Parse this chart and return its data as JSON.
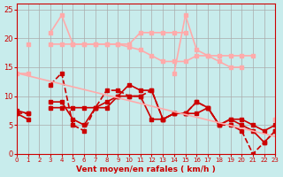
{
  "background_color": "#c8ecec",
  "grid_color": "#aaaaaa",
  "xlabel": "Vent moyen/en rafales ( km/h )",
  "xlabel_color": "#cc0000",
  "tick_color": "#cc0000",
  "xlim": [
    0,
    23
  ],
  "ylim": [
    0,
    26
  ],
  "yticks": [
    0,
    5,
    10,
    15,
    20,
    25
  ],
  "xticks": [
    0,
    1,
    2,
    3,
    4,
    5,
    6,
    7,
    8,
    9,
    10,
    11,
    12,
    13,
    14,
    15,
    16,
    17,
    18,
    19,
    20,
    21,
    22,
    23
  ],
  "lines": [
    {
      "x": [
        0,
        1,
        2,
        3,
        4,
        5,
        6,
        7,
        8,
        9,
        10,
        11,
        12,
        13,
        14,
        15,
        16,
        17,
        18,
        19,
        20,
        21,
        22,
        23
      ],
      "y": [
        7,
        6,
        null,
        9,
        9,
        6,
        5,
        8,
        8,
        10,
        12,
        11,
        11,
        6,
        7,
        7,
        9,
        8,
        5,
        6,
        5,
        4,
        2,
        4
      ],
      "color": "#cc0000",
      "linewidth": 1.2,
      "marker": "s",
      "markersize": 2.5,
      "linestyle": "-"
    },
    {
      "x": [
        0,
        1,
        2,
        3,
        4,
        5,
        6,
        7,
        8,
        9,
        10,
        11,
        12,
        13,
        14,
        15,
        16,
        17,
        18,
        19,
        20,
        21,
        22,
        23
      ],
      "y": [
        7,
        7,
        null,
        12,
        14,
        5,
        4,
        8,
        11,
        11,
        10,
        10,
        11,
        6,
        7,
        7,
        9,
        8,
        5,
        5,
        4,
        0,
        2,
        4
      ],
      "color": "#cc0000",
      "linewidth": 1.2,
      "marker": "s",
      "markersize": 2.5,
      "linestyle": "--"
    },
    {
      "x": [
        0,
        1,
        2,
        3,
        4,
        5,
        6,
        7,
        8,
        9,
        10,
        11,
        12,
        13,
        14,
        15,
        16,
        17,
        18,
        19,
        20,
        21,
        22,
        23
      ],
      "y": [
        7.5,
        7,
        null,
        8,
        8,
        8,
        8,
        8,
        9,
        10,
        10,
        10,
        6,
        6,
        7,
        7,
        7,
        8,
        5,
        6,
        6,
        5,
        4,
        5
      ],
      "color": "#cc0000",
      "linewidth": 1.2,
      "marker": "s",
      "markersize": 2.5,
      "linestyle": "-"
    },
    {
      "x": [
        0,
        1,
        2,
        3,
        4,
        5,
        6,
        7,
        8,
        9,
        10,
        11,
        12,
        13,
        14,
        15,
        16,
        17,
        18,
        19,
        20,
        21,
        22,
        23
      ],
      "y": [
        14,
        14,
        null,
        19,
        19,
        19,
        19,
        19,
        19,
        19,
        18.5,
        18,
        17,
        16,
        16,
        16,
        17,
        17,
        16,
        15,
        15,
        null,
        null,
        6
      ],
      "color": "#ffaaaa",
      "linewidth": 1.2,
      "marker": "s",
      "markersize": 2.5,
      "linestyle": "-"
    },
    {
      "x": [
        0,
        1,
        2,
        3,
        4,
        5,
        6,
        7,
        8,
        9,
        10,
        11,
        12,
        13,
        14,
        15,
        16,
        17,
        18,
        19,
        20,
        21,
        22,
        23
      ],
      "y": [
        null,
        null,
        null,
        21,
        24,
        19,
        19,
        19,
        19,
        19,
        19,
        21,
        21,
        21,
        21,
        21,
        null,
        null,
        null,
        null,
        null,
        null,
        null,
        null
      ],
      "color": "#ffaaaa",
      "linewidth": 1.2,
      "marker": "s",
      "markersize": 2.5,
      "linestyle": "-"
    },
    {
      "x": [
        0,
        1,
        2,
        3,
        4,
        5,
        6,
        7,
        8,
        9,
        10,
        11,
        12,
        13,
        14,
        15,
        16,
        17,
        18,
        19,
        20,
        21,
        22,
        23
      ],
      "y": [
        null,
        null,
        null,
        null,
        null,
        null,
        null,
        null,
        null,
        null,
        null,
        null,
        null,
        null,
        14,
        24,
        18,
        17,
        17,
        17,
        17,
        17,
        null,
        6
      ],
      "color": "#ffaaaa",
      "linewidth": 1.2,
      "marker": "s",
      "markersize": 2.5,
      "linestyle": "-"
    },
    {
      "x": [
        0,
        1,
        2,
        3,
        4,
        5,
        6,
        7,
        8,
        9,
        10,
        11,
        12,
        13,
        14,
        15,
        16,
        17,
        18,
        19,
        20,
        21,
        22,
        23
      ],
      "y": [
        null,
        19,
        null,
        null,
        null,
        null,
        null,
        null,
        null,
        null,
        null,
        null,
        null,
        null,
        null,
        null,
        null,
        null,
        null,
        null,
        null,
        null,
        null,
        null
      ],
      "color": "#ffaaaa",
      "linewidth": 1.2,
      "marker": "s",
      "markersize": 2.5,
      "linestyle": "-"
    },
    {
      "x": [
        0,
        23
      ],
      "y": [
        14,
        3
      ],
      "color": "#ffaaaa",
      "linewidth": 1.2,
      "marker": null,
      "linestyle": "-"
    }
  ],
  "arrow_color": "#cc0000"
}
